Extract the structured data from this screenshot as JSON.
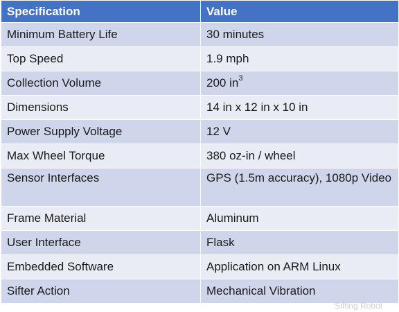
{
  "table": {
    "headers": [
      "Specification",
      "Value"
    ],
    "rows": [
      {
        "spec": "Minimum Battery Life",
        "value": "30 minutes"
      },
      {
        "spec": "Top Speed",
        "value": "1.9 mph"
      },
      {
        "spec": "Collection Volume",
        "value": "200 in",
        "value_sup": "3"
      },
      {
        "spec": "Dimensions",
        "value": "14 in x 12 in x 10 in"
      },
      {
        "spec": "Power Supply Voltage",
        "value": "12 V"
      },
      {
        "spec": "Max Wheel Torque",
        "value": "380 oz-in / wheel"
      },
      {
        "spec": "Sensor Interfaces",
        "value": "GPS (1.5m accuracy), 1080p Video"
      },
      {
        "spec": "Frame Material",
        "value": "Aluminum"
      },
      {
        "spec": "User Interface",
        "value": "Flask"
      },
      {
        "spec": "Embedded Software",
        "value": "Application on ARM Linux"
      },
      {
        "spec": "Sifter Action",
        "value": "Mechanical Vibration"
      }
    ]
  },
  "watermark": "Sifting Robot",
  "colors": {
    "header_bg": "#4472c4",
    "row_dark": "#cfd5ea",
    "row_light": "#e9ebf5"
  }
}
